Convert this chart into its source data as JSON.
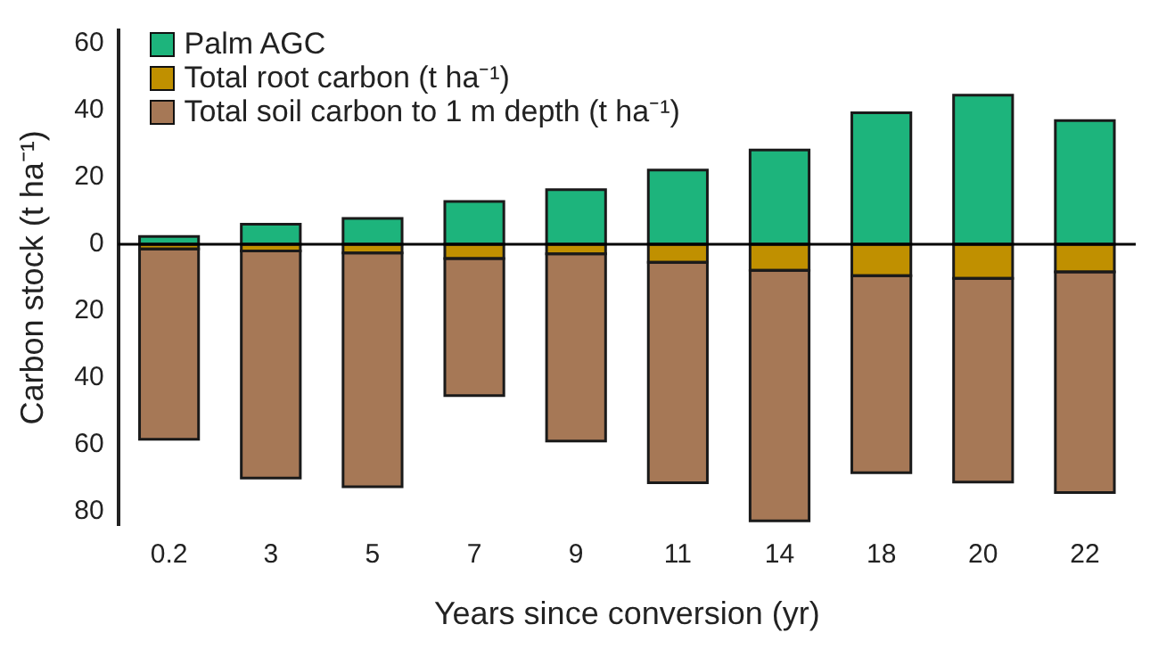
{
  "chart_data": {
    "type": "bar",
    "stacked": true,
    "xlabel": "Years since conversion (yr)",
    "ylabel": "Carbon stock (t ha⁻¹)",
    "categories": [
      "0.2",
      "3",
      "5",
      "7",
      "9",
      "11",
      "14",
      "18",
      "20",
      "22"
    ],
    "series": [
      {
        "name": "Palm AGC",
        "color": "#1db47c",
        "values": [
          2.3,
          6,
          7.7,
          12.8,
          16.3,
          22.2,
          28.2,
          39.3,
          44.6,
          37
        ]
      },
      {
        "name": "Total root carbon (t ha⁻¹)",
        "color": "#c09000",
        "values": [
          -1.4,
          -2,
          -2.6,
          -4.3,
          -2.9,
          -5.4,
          -7.8,
          -9.4,
          -10.2,
          -8.3
        ]
      },
      {
        "name": "Total soil carbon to 1 m depth (t ha⁻¹)",
        "color": "#a67856",
        "values": [
          -57,
          -68,
          -70,
          -41,
          -56,
          -66,
          -75,
          -59,
          -61,
          -66
        ]
      }
    ],
    "ylim": [
      -84,
      64
    ],
    "yticks": [
      {
        "value": -80,
        "label": "80"
      },
      {
        "value": -60,
        "label": "60"
      },
      {
        "value": -40,
        "label": "40"
      },
      {
        "value": -20,
        "label": "20"
      },
      0,
      20,
      40,
      60
    ],
    "ref_lines": [
      {
        "axis": "y",
        "value": 0,
        "color": "#000000"
      }
    ],
    "grid": false,
    "legend": "top left"
  }
}
